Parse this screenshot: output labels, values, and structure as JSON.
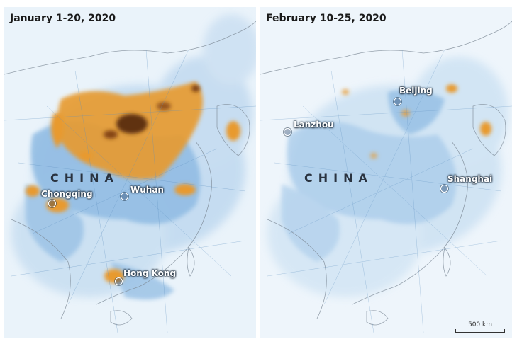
{
  "panels": [
    {
      "title": "January 1-20, 2020",
      "country": "CHINA",
      "cities": [
        {
          "name": "Chongqing"
        },
        {
          "name": "Wuhan"
        },
        {
          "name": "Hong Kong"
        }
      ]
    },
    {
      "title": "February 10-25, 2020",
      "country": "CHINA",
      "cities": [
        {
          "name": "Beijing"
        },
        {
          "name": "Lanzhou"
        },
        {
          "name": "Shanghai"
        }
      ],
      "scale_label": "500 km"
    }
  ],
  "colors": {
    "background": "#eaf3fa",
    "low_pollution": "#5b9bd5",
    "high_pollution": "#e89a2e",
    "peak_pollution": "#5a2a10",
    "borders": "#7f8c99"
  }
}
